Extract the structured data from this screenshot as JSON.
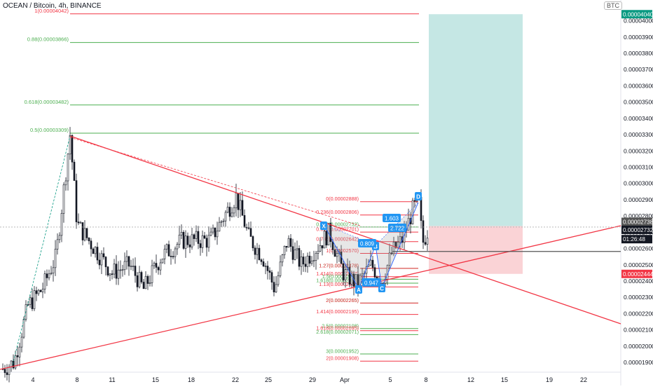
{
  "title": "OCEAN / Bitcoin, 4h, BINANCE",
  "currency_badge": "BTC",
  "chart_data": {
    "type": "candlestick",
    "symbol": "OCEAN / Bitcoin",
    "interval": "4h",
    "exchange": "BINANCE",
    "ylim": [
      1.84e-05,
      4.11e-05
    ],
    "y_ticks": [
      "0.00001900",
      "0.00002000",
      "0.00002100",
      "0.00002200",
      "0.00002300",
      "0.00002400",
      "0.00002500",
      "0.00002600",
      "0.00002700",
      "0.00002800",
      "0.00002900",
      "0.00003000",
      "0.00003100",
      "0.00003200",
      "0.00003300",
      "0.00003400",
      "0.00003500",
      "0.00003600",
      "0.00003700",
      "0.00003800",
      "0.00003900",
      "0.00004000"
    ],
    "x_ticks": [
      "4",
      "8",
      "11",
      "15",
      "18",
      "22",
      "25",
      "29",
      "Apr",
      "5",
      "8",
      "12",
      "15",
      "19",
      "22"
    ],
    "price_labels": [
      {
        "text": "0.00004040",
        "value": 4.04e-05,
        "color": "#089981"
      },
      {
        "text": "0.00002738",
        "value": 2.738e-05,
        "color": "#555555"
      },
      {
        "text": "0.00002732",
        "value": 2.732e-05,
        "color": "#131722"
      },
      {
        "text": "01:26:48",
        "value": 2.692e-05,
        "color": "#131722"
      },
      {
        "text": "0.00002444",
        "value": 2.444e-05,
        "color": "#f23645"
      }
    ],
    "fib_levels": [
      {
        "text": "1(0.00004042)",
        "value": 4.042e-05,
        "color": "#f23645"
      },
      {
        "text": "0.88(0.00003866)",
        "value": 3.866e-05,
        "color": "#4caf50"
      },
      {
        "text": "0.618(0.00003482)",
        "value": 3.482e-05,
        "color": "#4caf50"
      },
      {
        "text": "0.5(0.00003309)",
        "value": 3.309e-05,
        "color": "#4caf50"
      }
    ],
    "harmonic_levels": [
      {
        "text": "0(0.00002888)",
        "value": 2.888e-05,
        "color": "#f23645"
      },
      {
        "text": "0.236(0.00002806)",
        "value": 2.806e-05,
        "color": "#f23645"
      },
      {
        "text": "0.786(0.00002732)",
        "value": 2.732e-05,
        "color": "#4caf50"
      },
      {
        "text": "0.618(0.00002701)",
        "value": 2.701e-05,
        "color": "#f23645"
      },
      {
        "text": "0.786(0.00002642)",
        "value": 2.642e-05,
        "color": "#f23645"
      },
      {
        "text": "1(0.00002570)",
        "value": 2.57e-05,
        "color": "#f23645"
      },
      {
        "text": "1.27(0.00002478)",
        "value": 2.478e-05,
        "color": "#4caf50"
      },
      {
        "text": "1.27(0.00002478)",
        "value": 2.478e-05,
        "color": "#f23645"
      },
      {
        "text": "1.414(0.00002427)",
        "value": 2.427e-05,
        "color": "#f23645"
      },
      {
        "text": "1.5(0.00002411)",
        "value": 2.411e-05,
        "color": "#4caf50"
      },
      {
        "text": "1.618(0.00002387)",
        "value": 2.387e-05,
        "color": "#4caf50"
      },
      {
        "text": "1.13(0.00002364)",
        "value": 2.364e-05,
        "color": "#f23645"
      },
      {
        "text": "2(0.00002265)",
        "value": 2.265e-05,
        "color": "#4caf50"
      },
      {
        "text": "2(0.00002265)",
        "value": 2.265e-05,
        "color": "#f23645"
      },
      {
        "text": "1.414(0.00002195)",
        "value": 2.195e-05,
        "color": "#f23645"
      },
      {
        "text": "2.5(0.00002108)",
        "value": 2.108e-05,
        "color": "#4caf50"
      },
      {
        "text": "2.618(0.00002071)",
        "value": 2.071e-05,
        "color": "#4caf50"
      },
      {
        "text": "1.618(0.00002095)",
        "value": 2.095e-05,
        "color": "#f23645"
      },
      {
        "text": "3(0.00001952)",
        "value": 1.952e-05,
        "color": "#4caf50"
      },
      {
        "text": "2(0.00001908)",
        "value": 1.908e-05,
        "color": "#f23645"
      }
    ],
    "pattern_points": [
      "X",
      "A",
      "B",
      "C",
      "D"
    ],
    "ratio_labels": [
      "1.603",
      "2.722",
      "0.809",
      "0.947"
    ],
    "position_target_zone": {
      "color": "#b2dfdb",
      "from": 2.738e-05,
      "to": 4.04e-05
    },
    "position_stop_zone": {
      "color": "#f8c4c8",
      "from": 2.444e-05,
      "to": 2.738e-05
    }
  }
}
